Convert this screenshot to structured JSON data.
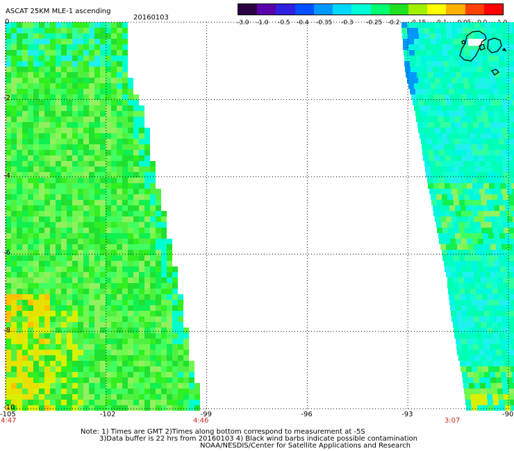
{
  "header": {
    "title": "ASCAT 25KM MLE-1 ascending",
    "date": "20160103"
  },
  "colorbar": {
    "ticks": [
      "-3.0",
      "-1.0",
      "-0.5",
      "-0.4",
      "-0.35",
      "-0.3",
      "-0.25",
      "-0.2",
      "-0.15",
      "-0.1",
      "-0.05",
      "0.0",
      "1.0"
    ],
    "colors": [
      "#2a0040",
      "#5a00a8",
      "#3020e0",
      "#0050ff",
      "#0098ff",
      "#00d8ff",
      "#00ffd8",
      "#00ff70",
      "#20e020",
      "#a0f000",
      "#ffff00",
      "#ffb000",
      "#ff4000",
      "#ff0000"
    ]
  },
  "map": {
    "x_axis_labels": [
      "-105",
      "-102",
      "-99",
      "-96",
      "-93",
      "-90"
    ],
    "x_axis_values": [
      -105,
      -102,
      -99,
      -96,
      -93,
      -90
    ],
    "y_axis_labels": [
      "0",
      "-2",
      "-4",
      "-6",
      "-8",
      "-10"
    ],
    "y_axis_values": [
      0,
      -2,
      -4,
      -6,
      -8,
      -10
    ],
    "x_range": [
      -105,
      -90
    ],
    "y_range": [
      -10,
      0
    ],
    "pass_times": [
      {
        "label": "4:47",
        "lon": -105
      },
      {
        "label": "4:46",
        "lon": -99.2
      },
      {
        "label": "3:07",
        "lon": -91.7
      }
    ],
    "swath_left": {
      "name": "western swath",
      "west_edge_lon": -105
    },
    "swath_right": {
      "name": "eastern swath",
      "east_edge_lon": -90
    },
    "land": "Galapagos Islands"
  },
  "notes": {
    "line1": "Note: 1) Times are GMT 2)Times along bottom correspond to measurement at -5S",
    "line2": "3)Data buffer is 22 hrs from 20160103 4) Black wind barbs indicate possible contamination",
    "line3": "NOAA/NESDIS/Center for Satellite Applications and Research"
  }
}
